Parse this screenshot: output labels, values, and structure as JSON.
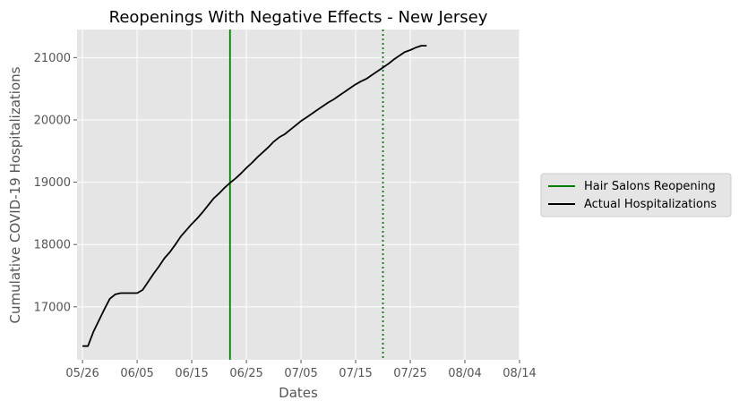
{
  "chart_data": {
    "type": "line",
    "title": "Reopenings With Negative Effects - New Jersey",
    "xlabel": "Dates",
    "ylabel": "Cumulative COVID-19 Hospitalizations",
    "x_axis_type": "date",
    "year": 2020,
    "xlim": [
      "2020-05-25",
      "2020-08-14"
    ],
    "ylim": [
      16150,
      21450
    ],
    "x_ticks": [
      {
        "date": "2020-05-26",
        "label": "05/26"
      },
      {
        "date": "2020-06-05",
        "label": "06/05"
      },
      {
        "date": "2020-06-15",
        "label": "06/15"
      },
      {
        "date": "2020-06-25",
        "label": "06/25"
      },
      {
        "date": "2020-07-05",
        "label": "07/05"
      },
      {
        "date": "2020-07-15",
        "label": "07/15"
      },
      {
        "date": "2020-07-25",
        "label": "07/25"
      },
      {
        "date": "2020-08-04",
        "label": "08/04"
      },
      {
        "date": "2020-08-14",
        "label": "08/14"
      }
    ],
    "y_ticks": [
      {
        "value": 17000,
        "label": "17000"
      },
      {
        "value": 18000,
        "label": "18000"
      },
      {
        "value": 19000,
        "label": "19000"
      },
      {
        "value": 20000,
        "label": "20000"
      },
      {
        "value": 21000,
        "label": "21000"
      }
    ],
    "grid": true,
    "legend_position": "right",
    "vlines": [
      {
        "date": "2020-06-22",
        "style": "solid",
        "color": "#008000",
        "legend": "Hair Salons Reopening"
      },
      {
        "date": "2020-07-20",
        "style": "dotted",
        "color": "#008000"
      }
    ],
    "series": [
      {
        "name": "Actual Hospitalizations",
        "color": "#000000",
        "x": [
          "2020-05-26",
          "2020-05-27",
          "2020-05-28",
          "2020-05-29",
          "2020-05-30",
          "2020-05-31",
          "2020-06-01",
          "2020-06-02",
          "2020-06-03",
          "2020-06-04",
          "2020-06-05",
          "2020-06-06",
          "2020-06-07",
          "2020-06-08",
          "2020-06-09",
          "2020-06-10",
          "2020-06-11",
          "2020-06-12",
          "2020-06-13",
          "2020-06-14",
          "2020-06-15",
          "2020-06-16",
          "2020-06-17",
          "2020-06-18",
          "2020-06-19",
          "2020-06-20",
          "2020-06-21",
          "2020-06-22",
          "2020-06-23",
          "2020-06-24",
          "2020-06-25",
          "2020-06-26",
          "2020-06-27",
          "2020-06-28",
          "2020-06-29",
          "2020-06-30",
          "2020-07-01",
          "2020-07-02",
          "2020-07-03",
          "2020-07-04",
          "2020-07-05",
          "2020-07-06",
          "2020-07-07",
          "2020-07-08",
          "2020-07-09",
          "2020-07-10",
          "2020-07-11",
          "2020-07-12",
          "2020-07-13",
          "2020-07-14",
          "2020-07-15",
          "2020-07-16",
          "2020-07-17",
          "2020-07-18",
          "2020-07-19",
          "2020-07-20",
          "2020-07-21",
          "2020-07-22",
          "2020-07-23",
          "2020-07-24",
          "2020-07-25",
          "2020-07-26",
          "2020-07-27",
          "2020-07-28"
        ],
        "y": [
          16370,
          16370,
          16600,
          16780,
          16960,
          17130,
          17200,
          17220,
          17220,
          17220,
          17220,
          17270,
          17400,
          17530,
          17650,
          17780,
          17880,
          18000,
          18130,
          18230,
          18330,
          18420,
          18520,
          18630,
          18740,
          18820,
          18910,
          18990,
          19060,
          19140,
          19230,
          19310,
          19400,
          19480,
          19560,
          19650,
          19720,
          19770,
          19840,
          19910,
          19980,
          20040,
          20100,
          20160,
          20220,
          20280,
          20330,
          20390,
          20450,
          20510,
          20570,
          20620,
          20660,
          20720,
          20780,
          20840,
          20900,
          20970,
          21030,
          21090,
          21120,
          21160,
          21190,
          21190
        ]
      }
    ]
  }
}
